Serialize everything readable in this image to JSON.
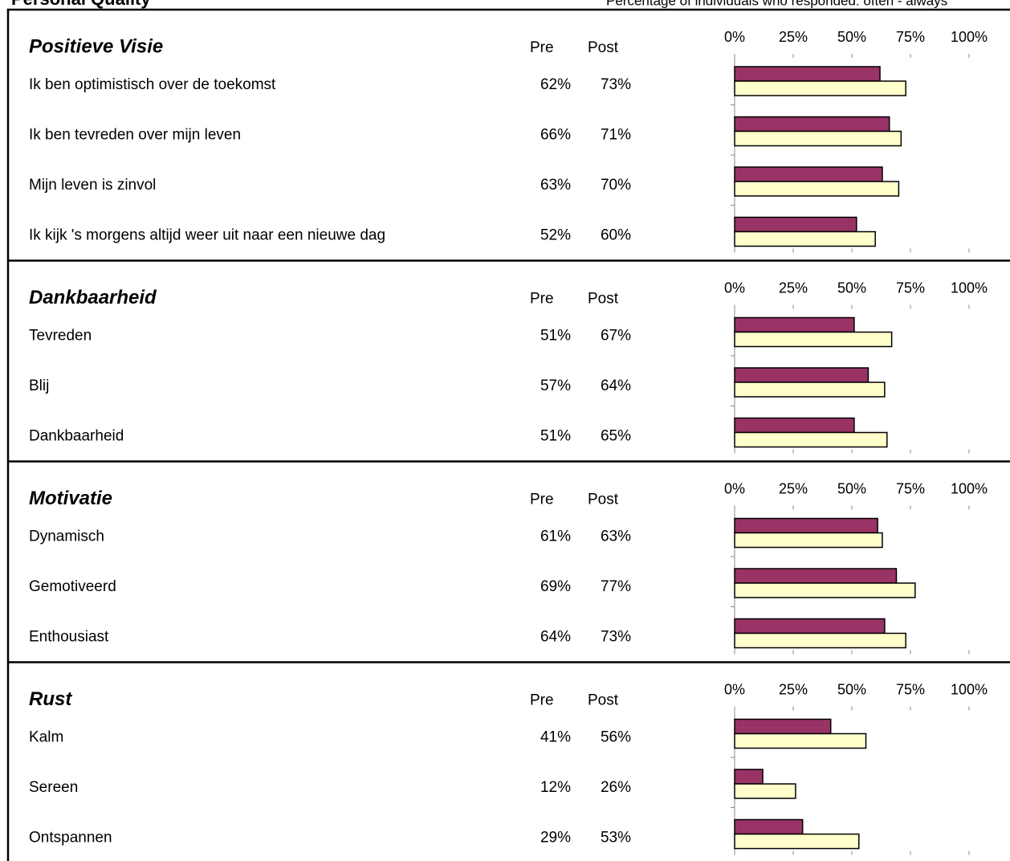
{
  "header": {
    "title": "Personal Quality",
    "subtitle": "Percentage of individuals who responded: often - always"
  },
  "chart_data": [
    {
      "type": "bar",
      "title": "Positieve Visie",
      "categories": [
        "Ik ben optimistisch over de toekomst",
        "Ik ben tevreden over mijn leven",
        "Mijn leven is zinvol",
        "Ik kijk 's morgens altijd weer uit naar een nieuwe dag"
      ],
      "series": [
        {
          "name": "Pre",
          "color": "#993366",
          "values": [
            62,
            66,
            63,
            52
          ],
          "value_labels": [
            "62%",
            "66%",
            "63%",
            "52%"
          ]
        },
        {
          "name": "Post",
          "color": "#ffffcc",
          "values": [
            73,
            71,
            70,
            60
          ],
          "value_labels": [
            "73%",
            "71%",
            "70%",
            "60%"
          ]
        }
      ],
      "xlim": [
        0,
        100
      ],
      "xticks": [
        {
          "value": 0,
          "label": "0%"
        },
        {
          "value": 25,
          "label": "25%"
        },
        {
          "value": 50,
          "label": "50%"
        },
        {
          "value": 75,
          "label": "75%"
        },
        {
          "value": 100,
          "label": "100%"
        }
      ]
    },
    {
      "type": "bar",
      "title": "Dankbaarheid",
      "categories": [
        "Tevreden",
        "Blij",
        "Dankbaarheid"
      ],
      "series": [
        {
          "name": "Pre",
          "color": "#993366",
          "values": [
            51,
            57,
            51
          ],
          "value_labels": [
            "51%",
            "57%",
            "51%"
          ]
        },
        {
          "name": "Post",
          "color": "#ffffcc",
          "values": [
            67,
            64,
            65
          ],
          "value_labels": [
            "67%",
            "64%",
            "65%"
          ]
        }
      ],
      "xlim": [
        0,
        100
      ],
      "xticks": [
        {
          "value": 0,
          "label": "0%"
        },
        {
          "value": 25,
          "label": "25%"
        },
        {
          "value": 50,
          "label": "50%"
        },
        {
          "value": 75,
          "label": "75%"
        },
        {
          "value": 100,
          "label": "100%"
        }
      ]
    },
    {
      "type": "bar",
      "title": "Motivatie",
      "categories": [
        "Dynamisch",
        "Gemotiveerd",
        "Enthousiast"
      ],
      "series": [
        {
          "name": "Pre",
          "color": "#993366",
          "values": [
            61,
            69,
            64
          ],
          "value_labels": [
            "61%",
            "69%",
            "64%"
          ]
        },
        {
          "name": "Post",
          "color": "#ffffcc",
          "values": [
            63,
            77,
            73
          ],
          "value_labels": [
            "63%",
            "77%",
            "73%"
          ]
        }
      ],
      "xlim": [
        0,
        100
      ],
      "xticks": [
        {
          "value": 0,
          "label": "0%"
        },
        {
          "value": 25,
          "label": "25%"
        },
        {
          "value": 50,
          "label": "50%"
        },
        {
          "value": 75,
          "label": "75%"
        },
        {
          "value": 100,
          "label": "100%"
        }
      ]
    },
    {
      "type": "bar",
      "title": "Rust",
      "categories": [
        "Kalm",
        "Sereen",
        "Ontspannen"
      ],
      "series": [
        {
          "name": "Pre",
          "color": "#993366",
          "values": [
            41,
            12,
            29
          ],
          "value_labels": [
            "41%",
            "12%",
            "29%"
          ]
        },
        {
          "name": "Post",
          "color": "#ffffcc",
          "values": [
            56,
            26,
            53
          ],
          "value_labels": [
            "56%",
            "26%",
            "53%"
          ]
        }
      ],
      "xlim": [
        0,
        100
      ],
      "xticks": [
        {
          "value": 0,
          "label": "0%"
        },
        {
          "value": 25,
          "label": "25%"
        },
        {
          "value": 50,
          "label": "50%"
        },
        {
          "value": 75,
          "label": "75%"
        },
        {
          "value": 100,
          "label": "100%"
        }
      ]
    }
  ]
}
